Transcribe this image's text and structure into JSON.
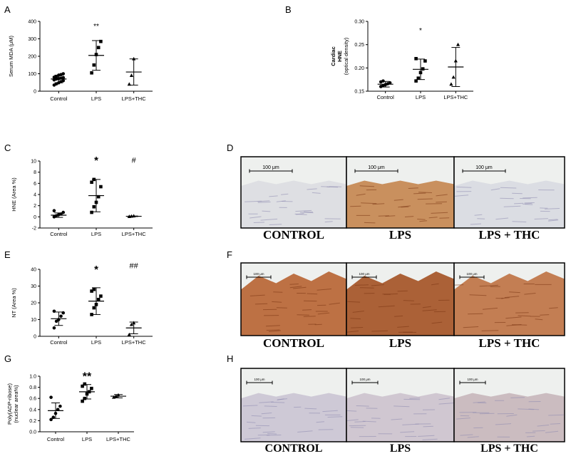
{
  "chart_data": [
    {
      "panel": "A",
      "type": "scatter",
      "ylabel": "Serum MDA (μM)",
      "categories": [
        "Control",
        "LPS",
        "LPS+THC"
      ],
      "ylim": [
        0,
        400
      ],
      "yticks": [
        "0",
        "100",
        "200",
        "300",
        "400"
      ],
      "ytick_values": [
        0,
        100,
        200,
        300,
        400
      ],
      "markers": [
        "circle",
        "square",
        "triangle"
      ],
      "points": [
        [
          35,
          42,
          48,
          55,
          60,
          65,
          70,
          72,
          75,
          78,
          80,
          85,
          92,
          95,
          100
        ],
        [
          105,
          150,
          210,
          250,
          285
        ],
        [
          40,
          90,
          185
        ]
      ],
      "means": [
        70,
        205,
        110
      ],
      "sd": [
        22,
        85,
        75
      ],
      "significance": [
        "",
        "**",
        ""
      ]
    },
    {
      "panel": "B",
      "type": "scatter",
      "ylabel": [
        "Cardiac",
        "HNE",
        "(optical density)"
      ],
      "categories": [
        "Control",
        "LPS",
        "LPS+THC"
      ],
      "ylim": [
        0.15,
        0.3
      ],
      "yticks": [
        "0.15",
        "0.20",
        "0.25",
        "0.30"
      ],
      "ytick_values": [
        0.15,
        0.2,
        0.25,
        0.3
      ],
      "markers": [
        "circle",
        "square",
        "triangle"
      ],
      "points": [
        [
          0.16,
          0.162,
          0.164,
          0.166,
          0.168,
          0.17,
          0.172
        ],
        [
          0.172,
          0.178,
          0.19,
          0.198,
          0.215,
          0.22
        ],
        [
          0.165,
          0.18,
          0.215,
          0.25
        ]
      ],
      "means": [
        0.165,
        0.197,
        0.202
      ],
      "sd": [
        0.006,
        0.022,
        0.042
      ],
      "significance": [
        "",
        "*",
        ""
      ]
    },
    {
      "panel": "C",
      "type": "scatter",
      "ylabel": "HNE (Area %)",
      "categories": [
        "Control",
        "LPS",
        "LPS+THC"
      ],
      "ylim": [
        -2,
        10
      ],
      "yticks": [
        "-2",
        "0",
        "2",
        "4",
        "6",
        "8",
        "10"
      ],
      "ytick_values": [
        -2,
        0,
        2,
        4,
        6,
        8,
        10
      ],
      "markers": [
        "circle",
        "square",
        "triangle"
      ],
      "points": [
        [
          0.0,
          0.2,
          0.4,
          0.5,
          0.8,
          1.1
        ],
        [
          0.8,
          1.8,
          2.6,
          3.6,
          5.4,
          6.2,
          6.7
        ],
        [
          0.05,
          0.1,
          0.15
        ]
      ],
      "means": [
        0.3,
        3.8,
        0.1
      ],
      "sd": [
        0.4,
        2.9,
        0.05
      ],
      "significance": [
        "",
        "*",
        "#"
      ]
    },
    {
      "panel": "E",
      "type": "scatter",
      "ylabel": "NT (Area %)",
      "categories": [
        "Control",
        "LPS",
        "LPS+THC"
      ],
      "ylim": [
        0,
        40
      ],
      "yticks": [
        "0",
        "10",
        "20",
        "30",
        "40"
      ],
      "ytick_values": [
        0,
        10,
        20,
        30,
        40
      ],
      "markers": [
        "circle",
        "square",
        "triangle"
      ],
      "points": [
        [
          5,
          9,
          10,
          12,
          14,
          15
        ],
        [
          13,
          17,
          19,
          22,
          24,
          27,
          28
        ],
        [
          1,
          7,
          8
        ]
      ],
      "means": [
        10.5,
        21,
        5
      ],
      "sd": [
        4,
        8,
        3.5
      ],
      "significance": [
        "",
        "*",
        "##"
      ]
    },
    {
      "panel": "G",
      "type": "scatter",
      "ylabel": [
        "Poly(ADP-ribose)",
        "(nuclear area%)"
      ],
      "categories": [
        "Control",
        "LPS",
        "LPS+THC"
      ],
      "ylim": [
        0.0,
        1.0
      ],
      "yticks": [
        "0.0",
        "0.2",
        "0.4",
        "0.6",
        "0.8",
        "1.0"
      ],
      "ytick_values": [
        0.0,
        0.2,
        0.4,
        0.6,
        0.8,
        1.0
      ],
      "markers": [
        "circle",
        "square",
        "triangle"
      ],
      "points": [
        [
          0.22,
          0.26,
          0.33,
          0.4,
          0.46,
          0.62
        ],
        [
          0.55,
          0.6,
          0.68,
          0.72,
          0.78,
          0.82,
          0.86
        ],
        [
          0.62,
          0.64,
          0.66
        ]
      ],
      "means": [
        0.38,
        0.72,
        0.64
      ],
      "sd": [
        0.14,
        0.13,
        0.03
      ],
      "significance": [
        "",
        "**",
        ""
      ]
    }
  ],
  "micrographs": [
    {
      "panel": "D",
      "scale_label": "100 μm",
      "stain": "light",
      "labels": [
        "CONTROL",
        "LPS",
        "LPS + THC"
      ],
      "tones": [
        "#dcdde2",
        "#c68a55",
        "#d9dbe1"
      ]
    },
    {
      "panel": "F",
      "scale_label": "100 μm",
      "stain": "brown",
      "labels": [
        "CONTROL",
        "LPS",
        "LPS + THC"
      ],
      "tones": [
        "#b9693a",
        "#a6592c",
        "#c0774a"
      ]
    },
    {
      "panel": "H",
      "scale_label": "100 μm",
      "stain": "light",
      "labels": [
        "CONTROL",
        "LPS",
        "LPS + THC"
      ],
      "tones": [
        "#cbc6d4",
        "#cdc4cf",
        "#c8b8bd"
      ]
    }
  ],
  "colors": {
    "marker": "#000000",
    "axis": "#000000",
    "tissue_bg": "#eef0ee"
  }
}
